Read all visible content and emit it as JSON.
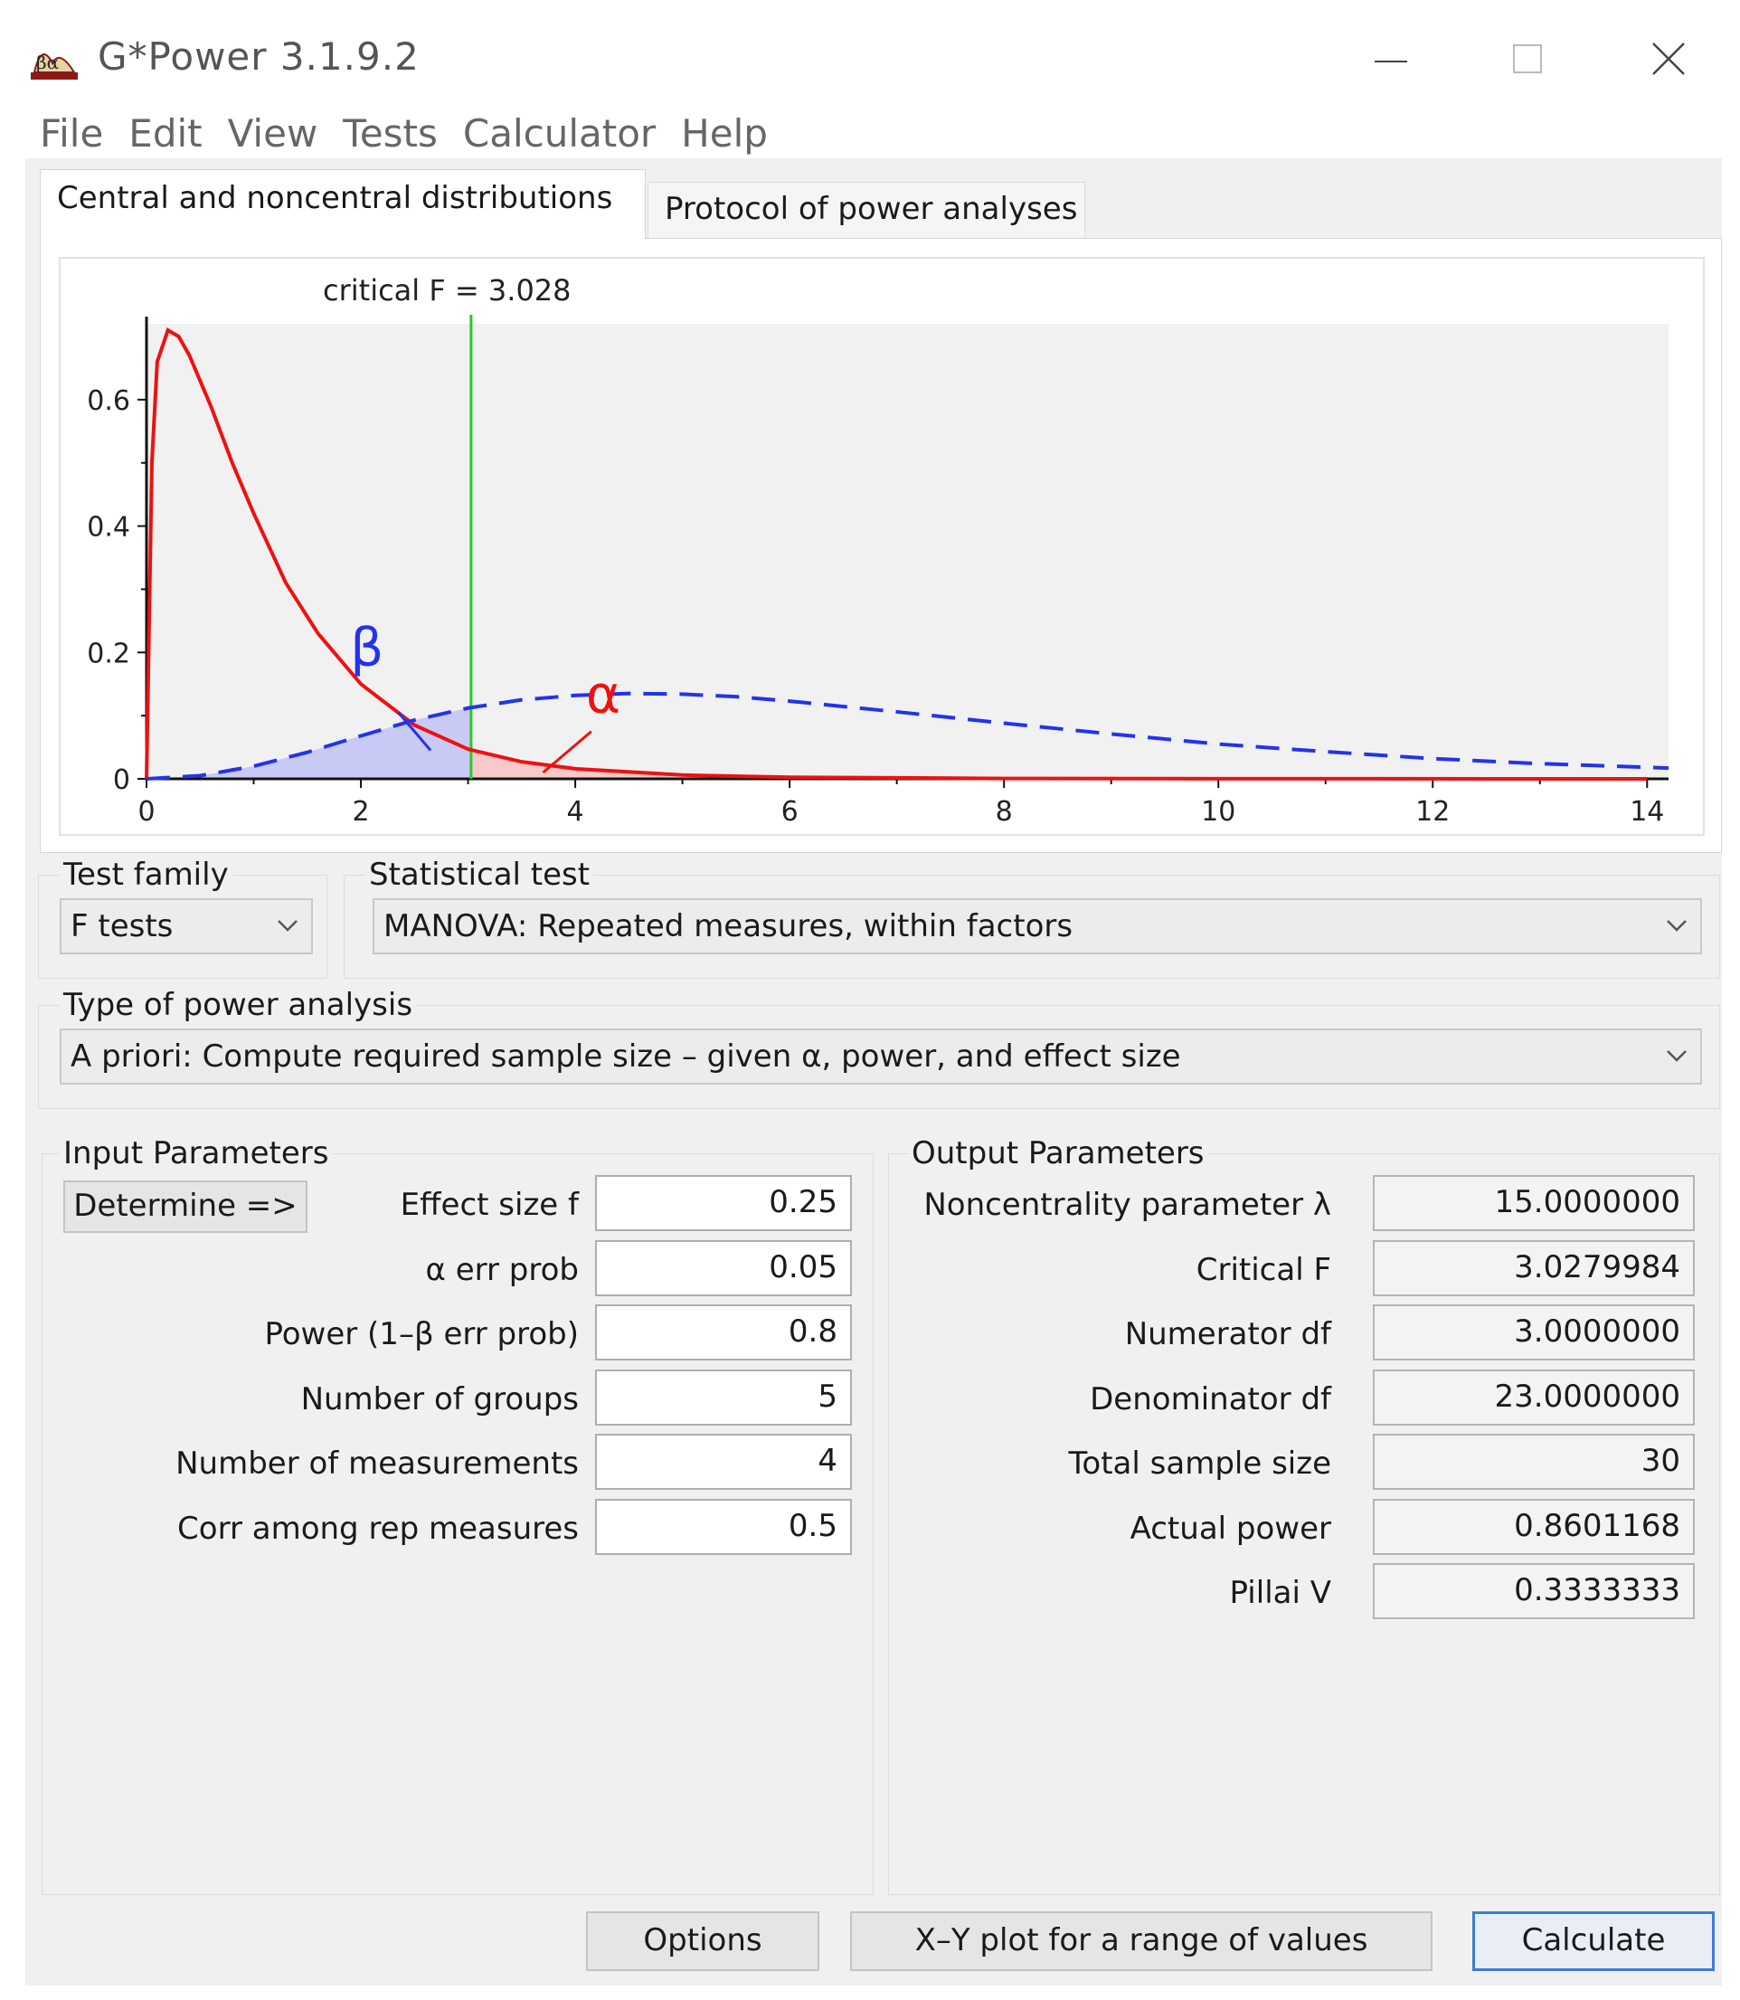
{
  "app": {
    "title": "G*Power 3.1.9.2",
    "icon_text": "βα"
  },
  "window_controls": {
    "minimize": "—",
    "maximize": "☐",
    "close": "✕"
  },
  "menu": [
    "File",
    "Edit",
    "View",
    "Tests",
    "Calculator",
    "Help"
  ],
  "tabs": [
    {
      "label": "Central and noncentral distributions",
      "active": true
    },
    {
      "label": "Protocol of power analyses",
      "active": false
    }
  ],
  "chart_data": {
    "type": "line",
    "annotation_critical": "critical F =  3.028",
    "beta_symbol": "β",
    "alpha_symbol": "α",
    "x_ticks": [
      "0",
      "2",
      "4",
      "6",
      "8",
      "10",
      "12",
      "14"
    ],
    "y_ticks": [
      "0",
      "0.2",
      "0.4",
      "0.6"
    ],
    "xlim": [
      0,
      14.2
    ],
    "ylim": [
      0,
      0.72
    ],
    "critical_f": 3.028,
    "series": [
      {
        "style": "solid",
        "color": "#ee1111",
        "x": [
          0,
          0.05,
          0.1,
          0.2,
          0.3,
          0.4,
          0.6,
          0.8,
          1.0,
          1.3,
          1.6,
          2.0,
          2.5,
          3.0,
          3.5,
          4.0,
          5.0,
          6.0,
          8.0,
          10.0,
          14.0
        ],
        "y": [
          0,
          0.5,
          0.66,
          0.71,
          0.7,
          0.67,
          0.59,
          0.5,
          0.42,
          0.31,
          0.23,
          0.15,
          0.085,
          0.047,
          0.027,
          0.016,
          0.006,
          0.0025,
          0.0006,
          0.0002,
          0.0
        ]
      },
      {
        "style": "dashed",
        "color": "#2233ee",
        "x": [
          0,
          0.5,
          1.0,
          1.5,
          2.0,
          2.5,
          3.0,
          3.5,
          4.0,
          4.5,
          5.0,
          5.5,
          6.0,
          7.0,
          8.0,
          9.0,
          10.0,
          11.0,
          12.0,
          13.0,
          14.2
        ],
        "y": [
          0,
          0.005,
          0.02,
          0.042,
          0.068,
          0.093,
          0.112,
          0.125,
          0.132,
          0.135,
          0.134,
          0.13,
          0.123,
          0.106,
          0.088,
          0.071,
          0.055,
          0.043,
          0.032,
          0.024,
          0.017
        ]
      }
    ],
    "colors": {
      "critical_line": "#22cc22",
      "beta_fill": "#c9c9f5",
      "alpha_fill": "#f7c9c9",
      "plot_bg": "#f1f1f1"
    }
  },
  "test_family": {
    "label": "Test family",
    "value": "F tests"
  },
  "statistical_test": {
    "label": "Statistical test",
    "value": "MANOVA: Repeated measures, within factors"
  },
  "power_analysis": {
    "label": "Type of power analysis",
    "value": "A priori: Compute required sample size – given α, power, and effect size"
  },
  "input": {
    "title": "Input Parameters",
    "determine_button": "Determine =>",
    "rows": [
      {
        "label": "Effect size f",
        "value": "0.25"
      },
      {
        "label": "α err prob",
        "value": "0.05"
      },
      {
        "label": "Power (1–β err prob)",
        "value": "0.8"
      },
      {
        "label": "Number of groups",
        "value": "5"
      },
      {
        "label": "Number of measurements",
        "value": "4"
      },
      {
        "label": "Corr among rep measures",
        "value": "0.5"
      }
    ]
  },
  "output": {
    "title": "Output Parameters",
    "rows": [
      {
        "label": "Noncentrality parameter λ",
        "value": "15.0000000"
      },
      {
        "label": "Critical F",
        "value": "3.0279984"
      },
      {
        "label": "Numerator df",
        "value": "3.0000000"
      },
      {
        "label": "Denominator df",
        "value": "23.0000000"
      },
      {
        "label": "Total sample size",
        "value": "30"
      },
      {
        "label": "Actual power",
        "value": "0.8601168"
      },
      {
        "label": "Pillai V",
        "value": "0.3333333"
      }
    ]
  },
  "buttons": {
    "options": "Options",
    "xy_plot": "X–Y plot for a range of values",
    "calculate": "Calculate"
  }
}
